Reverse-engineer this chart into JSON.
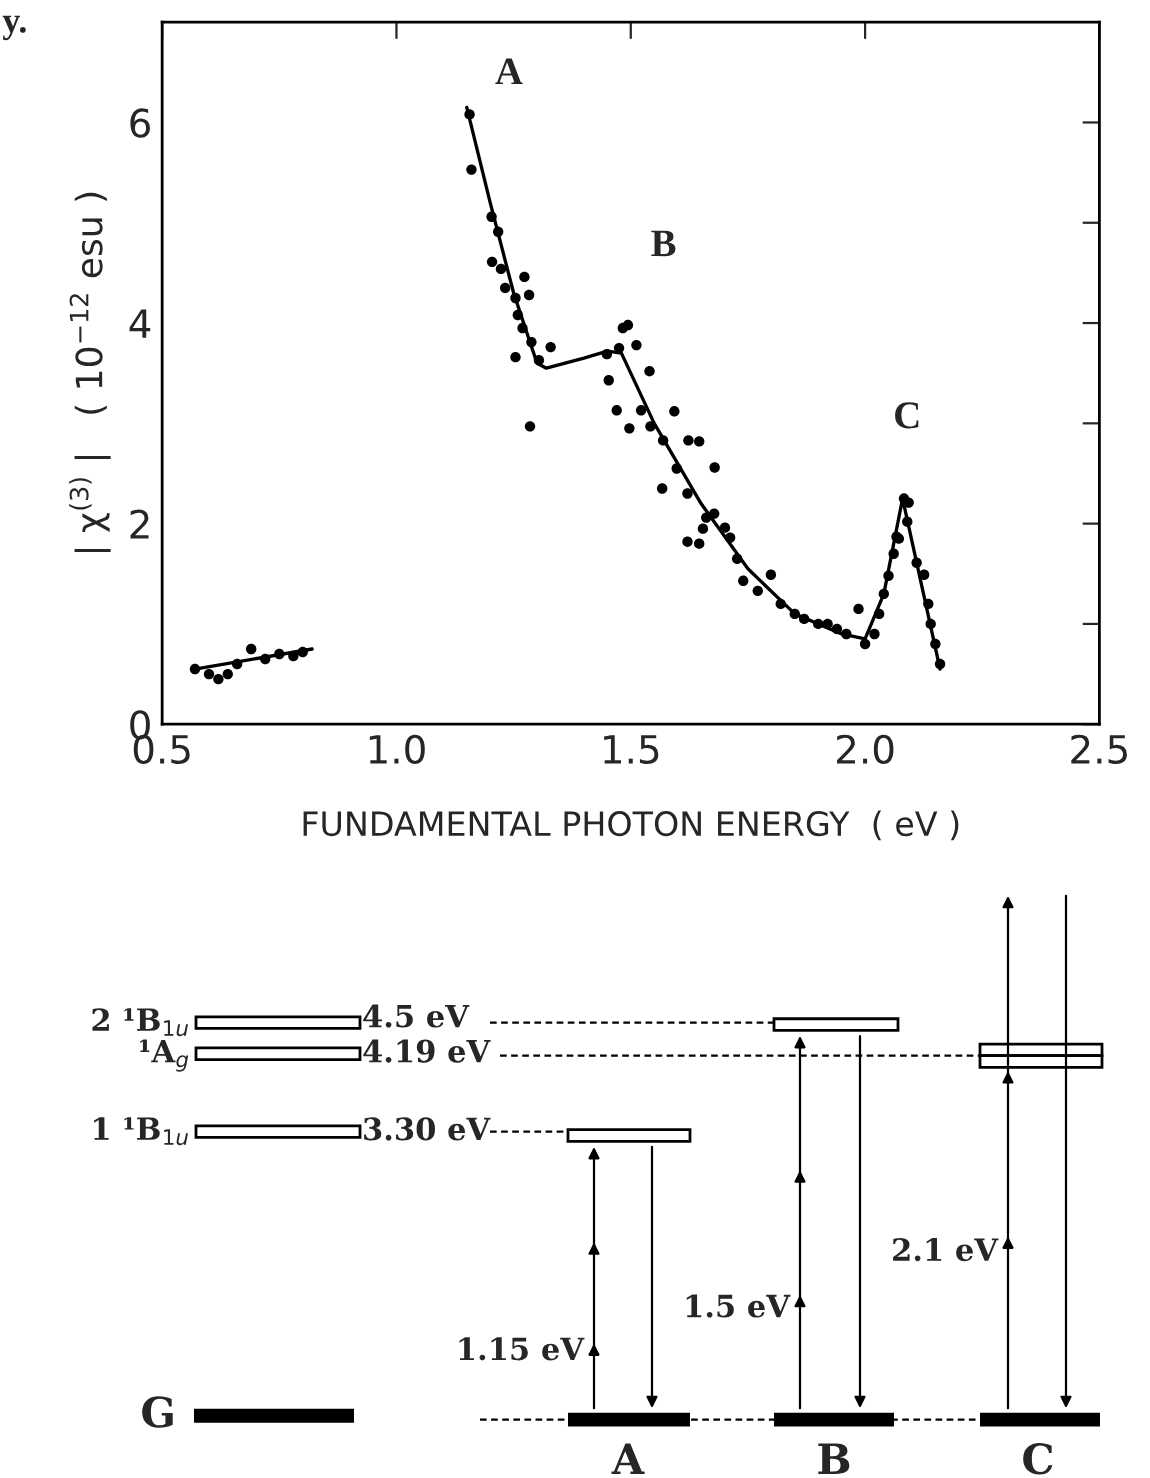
{
  "chart_data": [
    {
      "type": "scatter",
      "xlabel": "FUNDAMENTAL PHOTON ENERGY  ( eV )",
      "ylabel": "| χ$^{(3)}$ |   ( 10$^{−12}$ esu )",
      "xlim": [
        0.5,
        2.5
      ],
      "ylim": [
        0,
        7
      ],
      "xticks": [
        {
          "value": 0.5,
          "label": "0.5"
        },
        {
          "value": 1,
          "label": "1.0"
        },
        {
          "value": 1.5,
          "label": "1.5"
        },
        {
          "value": 2,
          "label": "2.0"
        },
        {
          "value": 2.5,
          "label": "2.5"
        }
      ],
      "yticks": [
        0,
        {
          "value": 1,
          "label": null
        },
        2,
        {
          "value": 3,
          "label": null
        },
        4,
        {
          "value": 5,
          "label": null
        },
        6
      ],
      "grid": false,
      "series": [
        {
          "type": "scatter",
          "color": "#000000",
          "marker": "circle",
          "x": [
            0.57,
            0.6,
            0.62,
            0.64,
            0.66,
            0.69,
            0.72,
            0.75,
            0.78,
            0.8,
            1.156,
            1.16,
            1.203,
            1.217,
            1.204,
            1.223,
            1.232,
            1.254,
            1.273,
            1.283,
            1.259,
            1.269,
            1.288,
            1.254,
            1.304,
            1.329,
            1.285,
            1.449,
            1.475,
            1.483,
            1.494,
            1.512,
            1.453,
            1.47,
            1.497,
            1.522,
            1.54,
            1.542,
            1.569,
            1.593,
            1.623,
            1.646,
            1.598,
            1.679,
            1.621,
            1.567,
            1.661,
            1.678,
            1.621,
            1.646,
            1.654,
            1.701,
            1.712,
            1.727,
            1.74,
            1.771,
            1.799,
            1.82,
            1.85,
            1.87,
            1.9,
            1.92,
            1.94,
            1.96,
            1.986,
            2.0,
            2.02,
            2.03,
            2.04,
            2.05,
            2.061,
            2.067,
            2.072,
            2.083,
            2.09,
            2.093,
            2.11,
            2.126,
            2.135,
            2.14,
            2.15,
            2.16
          ],
          "values": [
            0.55,
            0.5,
            0.45,
            0.5,
            0.6,
            0.75,
            0.65,
            0.7,
            0.68,
            0.72,
            6.08,
            5.53,
            5.06,
            4.91,
            4.61,
            4.54,
            4.35,
            4.25,
            4.46,
            4.28,
            4.08,
            3.95,
            3.81,
            3.66,
            3.63,
            3.76,
            2.97,
            3.69,
            3.75,
            3.95,
            3.98,
            3.78,
            3.43,
            3.13,
            2.95,
            3.13,
            3.52,
            2.97,
            2.83,
            3.12,
            2.83,
            2.82,
            2.55,
            2.56,
            2.3,
            2.35,
            2.06,
            2.1,
            1.82,
            1.8,
            1.95,
            1.96,
            1.86,
            1.65,
            1.43,
            1.33,
            1.49,
            1.2,
            1.1,
            1.05,
            1.0,
            1.0,
            0.95,
            0.9,
            1.15,
            0.8,
            0.9,
            1.1,
            1.3,
            1.48,
            1.7,
            1.87,
            1.85,
            2.25,
            2.02,
            2.21,
            1.61,
            1.49,
            1.2,
            1.0,
            0.8,
            0.6
          ]
        },
        {
          "type": "line",
          "color": "#000000",
          "line_style": "solid",
          "x": [
            1.15,
            1.2,
            1.25,
            1.3,
            1.32,
            1.4,
            1.45,
            1.48,
            1.55,
            1.65,
            1.75,
            1.85,
            1.95,
            2.0,
            2.04,
            2.08,
            2.12,
            2.16
          ],
          "values": [
            6.15,
            5.2,
            4.3,
            3.6,
            3.55,
            3.65,
            3.72,
            3.7,
            3.0,
            2.2,
            1.55,
            1.1,
            0.9,
            0.85,
            1.3,
            2.25,
            1.4,
            0.55
          ]
        },
        {
          "type": "line",
          "color": "#000000",
          "line_style": "solid",
          "x": [
            0.57,
            0.82
          ],
          "values": [
            0.55,
            0.75
          ]
        }
      ],
      "annotations": [
        "y.",
        "A",
        "B",
        "C"
      ]
    },
    {
      "type": "other",
      "annotations": [
        "2 ¹B$_{1u}$",
        "¹A$_{g}$",
        "1 ¹B$_{1u}$",
        "G",
        "4.5 eV",
        "4.19 eV",
        "3.30 eV",
        "1.15 eV",
        "1.5 eV",
        "2.1 eV",
        "A",
        "B",
        "C"
      ]
    }
  ]
}
